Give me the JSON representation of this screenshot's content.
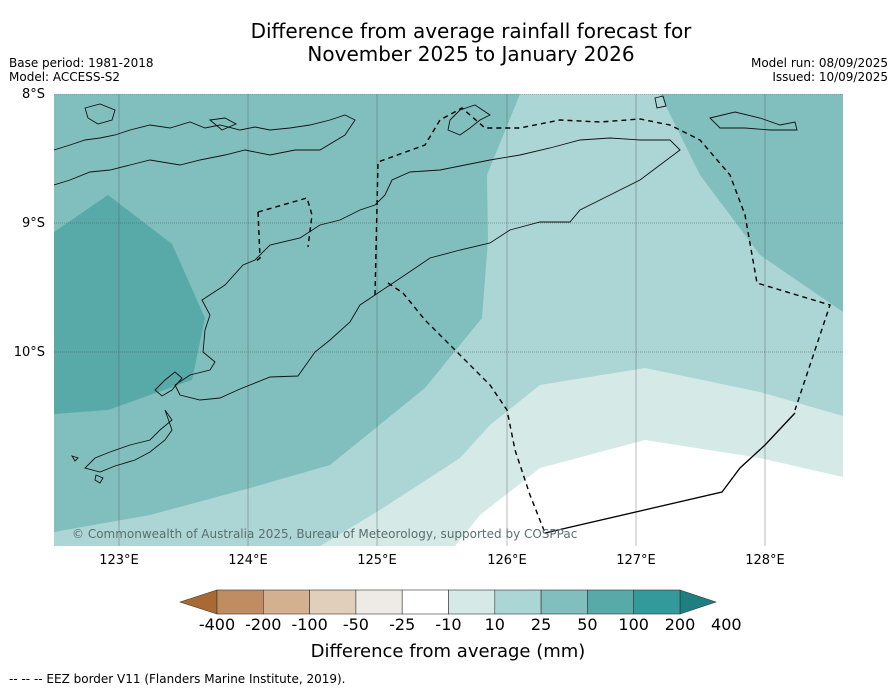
{
  "title_line1": "Difference from average rainfall forecast for",
  "title_line2": "November 2025 to January 2026",
  "base_period": "Base period: 1981-2018",
  "model": "Model: ACCESS-S2",
  "model_run": "Model run: 08/09/2025",
  "issued": "Issued: 10/09/2025",
  "lat_labels": [
    "8°S",
    "9°S",
    "10°S"
  ],
  "lon_labels": [
    "123°E",
    "124°E",
    "125°E",
    "126°E",
    "127°E",
    "128°E"
  ],
  "copyright": "© Commonwealth of Australia 2025, Bureau of Meteorology, supported by COSPPac",
  "colorbar": {
    "labels": [
      "-400",
      "-200",
      "-100",
      "-50",
      "-25",
      "-10",
      "10",
      "25",
      "50",
      "100",
      "200",
      "400"
    ],
    "colors": [
      "#a86a32",
      "#c08d62",
      "#d3b08f",
      "#e2cfbb",
      "#eeebe7",
      "#ffffff",
      "#d5e9e7",
      "#acd6d5",
      "#80bfbe",
      "#58aaa8",
      "#33999a",
      "#1f7e7f"
    ],
    "title": "Difference from average (mm)"
  },
  "footer": "--  --  -- EEZ border V11 (Flanders Marine Institute, 2019)."
}
